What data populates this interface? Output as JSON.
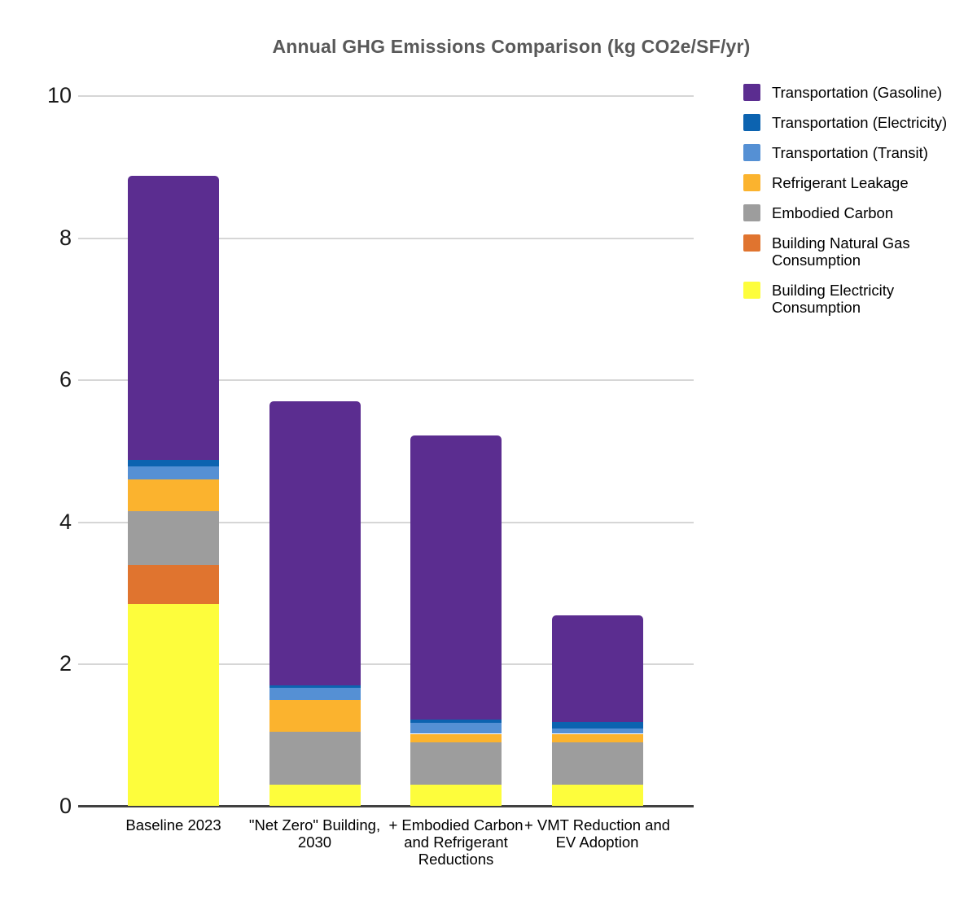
{
  "chart_data": {
    "type": "bar",
    "stacked": true,
    "title": "Annual GHG Emissions Comparison (kg CO2e/SF/yr)",
    "categories": [
      "Baseline 2023",
      "\"Net Zero\" Building, 2030",
      "+ Embodied Carbon and Refrigerant Reductions",
      "+ VMT Reduction and EV Adoption"
    ],
    "series": [
      {
        "name": "Building Electricity Consumption",
        "color": "#FDFD3C",
        "values": [
          2.85,
          0.3,
          0.3,
          0.3
        ]
      },
      {
        "name": "Building Natural Gas Consumption",
        "color": "#E0742F",
        "values": [
          0.55,
          0,
          0,
          0
        ]
      },
      {
        "name": "Embodied Carbon",
        "color": "#9D9D9D",
        "values": [
          0.75,
          0.75,
          0.6,
          0.6
        ]
      },
      {
        "name": "Refrigerant Leakage",
        "color": "#FBB32E",
        "values": [
          0.45,
          0.45,
          0.12,
          0.12
        ]
      },
      {
        "name": "Transportation (Transit)",
        "color": "#5590D4",
        "values": [
          0.18,
          0.17,
          0.16,
          0.08
        ]
      },
      {
        "name": "Transportation (Electricity)",
        "color": "#0C63B0",
        "values": [
          0.1,
          0.03,
          0.04,
          0.09
        ]
      },
      {
        "name": "Transportation (Gasoline)",
        "color": "#5B2D90",
        "values": [
          4.0,
          4.0,
          4.0,
          1.5
        ]
      }
    ],
    "totals": [
      8.88,
      5.7,
      5.22,
      2.69
    ],
    "xlabel": "",
    "ylabel": "",
    "ylim": [
      0,
      10
    ],
    "yticks": [
      0,
      2,
      4,
      6,
      8,
      10
    ],
    "grid": true,
    "legend_position": "right",
    "legend_note": "legend lists series top-of-stack first"
  }
}
